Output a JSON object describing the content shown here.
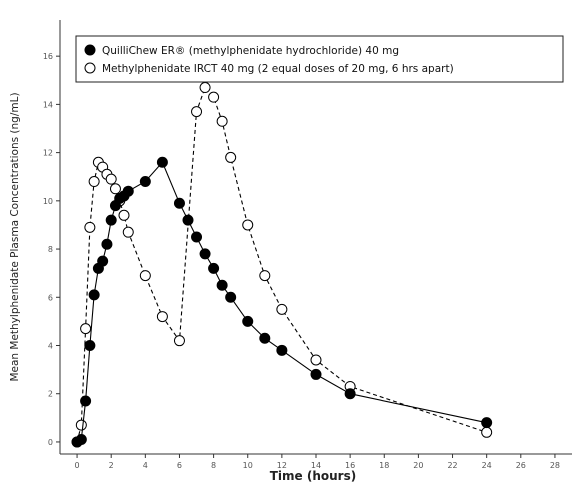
{
  "chart_data": {
    "type": "line",
    "title": "",
    "xlabel": "Time (hours)",
    "ylabel": "Mean Methylphenidate Plasma Concentrations (ng/mL)",
    "xlim": [
      -1,
      29
    ],
    "ylim": [
      -0.5,
      17.5
    ],
    "xticks": [
      0,
      2,
      4,
      6,
      8,
      10,
      12,
      14,
      16,
      18,
      20,
      22,
      24,
      26,
      28
    ],
    "yticks": [
      0,
      2,
      4,
      6,
      8,
      10,
      12,
      14,
      16
    ],
    "grid": false,
    "legend_position": "top",
    "series": [
      {
        "name": "QuilliChew ER® (methylphenidate hydrochloride) 40 mg",
        "marker": "filled-circle",
        "line": "solid",
        "color": "#000000",
        "x": [
          0,
          0.25,
          0.5,
          0.75,
          1,
          1.25,
          1.5,
          1.75,
          2,
          2.25,
          2.5,
          2.75,
          3,
          4,
          5,
          6,
          6.5,
          7,
          7.5,
          8,
          8.5,
          9,
          10,
          11,
          12,
          14,
          16,
          24
        ],
        "y": [
          0,
          0.1,
          1.7,
          4.0,
          6.1,
          7.2,
          7.5,
          8.2,
          9.2,
          9.8,
          10.1,
          10.2,
          10.4,
          10.8,
          11.6,
          9.9,
          9.2,
          8.5,
          7.8,
          7.2,
          6.5,
          6.0,
          5.0,
          4.3,
          3.8,
          2.8,
          2.0,
          0.8
        ]
      },
      {
        "name": "Methylphenidate IRCT 40 mg (2 equal doses of 20 mg, 6 hrs apart)",
        "marker": "open-circle",
        "line": "dashed",
        "color": "#000000",
        "x": [
          0,
          0.25,
          0.5,
          0.75,
          1,
          1.25,
          1.5,
          1.75,
          2,
          2.25,
          2.5,
          2.75,
          3,
          4,
          5,
          6,
          7,
          7.5,
          8,
          8.5,
          9,
          10,
          11,
          12,
          14,
          16,
          24
        ],
        "y": [
          0,
          0.7,
          4.7,
          8.9,
          10.8,
          11.6,
          11.4,
          11.1,
          10.9,
          10.5,
          10.0,
          9.4,
          8.7,
          6.9,
          5.2,
          4.2,
          13.7,
          14.7,
          14.3,
          13.3,
          11.8,
          9.0,
          6.9,
          5.5,
          3.4,
          2.3,
          0.4
        ]
      }
    ]
  }
}
